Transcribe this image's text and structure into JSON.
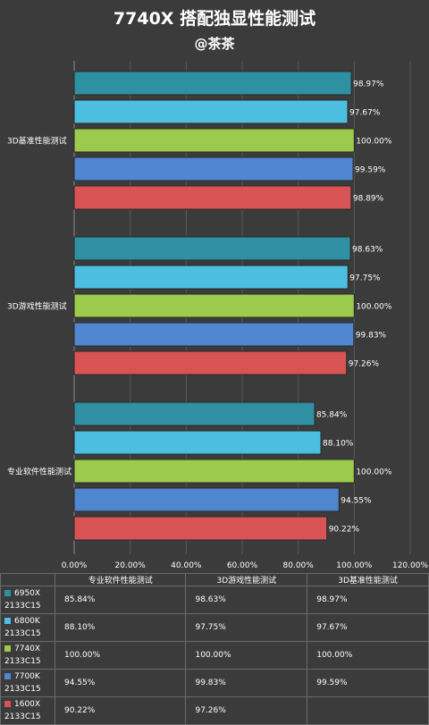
{
  "title": "7740X 搭配独显性能测试",
  "subtitle": "@茶茶",
  "chart_data": {
    "type": "bar",
    "orientation": "horizontal",
    "categories": [
      "3D基准性能测试",
      "3D游戏性能测试",
      "专业软件性能测试"
    ],
    "series": [
      {
        "name": "6950X 2133C15",
        "color": "#2f8fa3",
        "values": [
          98.97,
          98.63,
          85.84
        ]
      },
      {
        "name": "6800K 2133C15",
        "color": "#4cbfe0",
        "values": [
          97.67,
          97.75,
          88.1
        ]
      },
      {
        "name": "7740X 2133C15",
        "color": "#9bca4c",
        "values": [
          100.0,
          100.0,
          100.0
        ]
      },
      {
        "name": "7700K 2133C15",
        "color": "#4f86cf",
        "values": [
          99.59,
          99.83,
          94.55
        ]
      },
      {
        "name": "1600X 2133C15",
        "color": "#d85454",
        "values": [
          98.89,
          97.26,
          90.22
        ]
      }
    ],
    "data_labels": [
      [
        "98.97%",
        "98.63%",
        "85.84%"
      ],
      [
        "97.67%",
        "97.75%",
        "88.10%"
      ],
      [
        "100.00%",
        "100.00%",
        "100.00%"
      ],
      [
        "99.59%",
        "99.83%",
        "94.55%"
      ],
      [
        "98.89%",
        "97.26%",
        "90.22%"
      ]
    ],
    "xlim": [
      0,
      120
    ],
    "xticks": [
      0,
      20,
      40,
      60,
      80,
      100,
      120
    ],
    "xtick_labels": [
      "0.00%",
      "20.00%",
      "40.00%",
      "60.00%",
      "80.00%",
      "100.00%",
      "120.00%"
    ],
    "grid": true,
    "legend": "table-bottom"
  },
  "table": {
    "header": [
      "专业软件性能测试",
      "3D游戏性能测试",
      "3D基准性能测试"
    ],
    "rows": [
      {
        "name_line1": "6950X",
        "name_line2": "2133C15",
        "cells": [
          "85.84%",
          "98.63%",
          "98.97%"
        ]
      },
      {
        "name_line1": "6800K",
        "name_line2": "2133C15",
        "cells": [
          "88.10%",
          "97.75%",
          "97.67%"
        ]
      },
      {
        "name_line1": "7740X",
        "name_line2": "2133C15",
        "cells": [
          "100.00%",
          "100.00%",
          "100.00%"
        ]
      },
      {
        "name_line1": "7700K",
        "name_line2": "2133C15",
        "cells": [
          "94.55%",
          "99.83%",
          "99.59%"
        ]
      },
      {
        "name_line1": "1600X",
        "name_line2": "2133C15",
        "cells": [
          "90.22%",
          "97.26%",
          ""
        ]
      }
    ]
  }
}
